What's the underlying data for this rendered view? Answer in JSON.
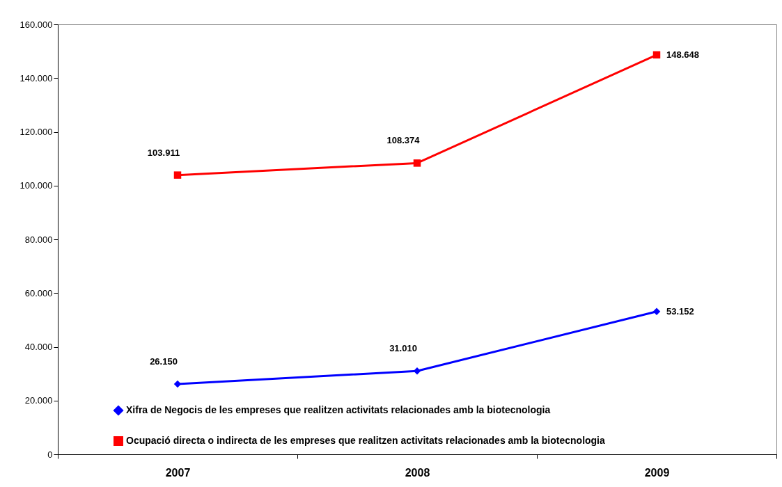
{
  "chart_data": {
    "type": "line",
    "categories": [
      "2007",
      "2008",
      "2009"
    ],
    "series": [
      {
        "name": "Xifra de Negocis de les empreses que realitzen activitats relacionades amb la biotecnologia",
        "color": "#0000ff",
        "marker": "diamond",
        "values": [
          26150,
          31010,
          53152
        ],
        "value_labels": [
          "26.150",
          "31.010",
          "53.152"
        ]
      },
      {
        "name": "Ocupació directa o indirecta de les empreses que realitzen activitats relacionades amb la biotecnologia",
        "color": "#ff0000",
        "marker": "square",
        "values": [
          103911,
          108374,
          148648
        ],
        "value_labels": [
          "103.911",
          "108.374",
          "148.648"
        ]
      }
    ],
    "ylim": [
      0,
      160000
    ],
    "yticks": [
      0,
      {
        "value": 20000,
        "label": "20.000"
      },
      {
        "value": 40000,
        "label": "40.000"
      },
      {
        "value": 60000,
        "label": "60.000"
      },
      {
        "value": 80000,
        "label": "80.000"
      },
      {
        "value": 100000,
        "label": "100.000"
      },
      {
        "value": 120000,
        "label": "120.000"
      },
      {
        "value": 140000,
        "label": "140.000"
      },
      {
        "value": 160000,
        "label": "160.000"
      }
    ],
    "grid": false,
    "legend": "bottom left"
  }
}
